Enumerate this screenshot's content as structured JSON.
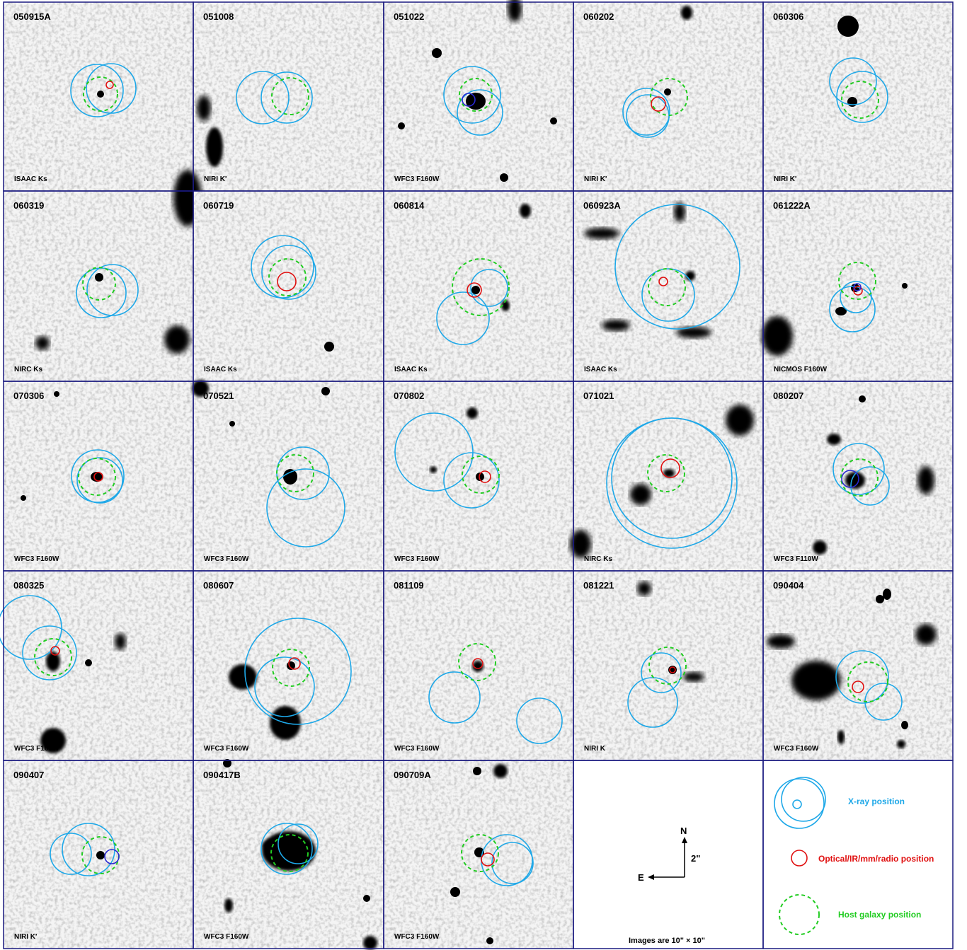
{
  "figure": {
    "rows": 5,
    "cols": 5,
    "border_color": "#1a1a80",
    "colors": {
      "xray": "#1ea8e8",
      "optical": "#e01010",
      "host": "#22cc22",
      "blue_marker": "#2828d0"
    }
  },
  "panels": [
    {
      "id": "050915A",
      "instrument": "ISAAC Ks"
    },
    {
      "id": "051008",
      "instrument": "NIRI K'"
    },
    {
      "id": "051022",
      "instrument": "WFC3 F160W"
    },
    {
      "id": "060202",
      "instrument": "NIRI K'"
    },
    {
      "id": "060306",
      "instrument": "NIRI K'"
    },
    {
      "id": "060319",
      "instrument": "NIRC Ks"
    },
    {
      "id": "060719",
      "instrument": "ISAAC Ks"
    },
    {
      "id": "060814",
      "instrument": "ISAAC Ks"
    },
    {
      "id": "060923A",
      "instrument": "ISAAC Ks"
    },
    {
      "id": "061222A",
      "instrument": "NICMOS F160W"
    },
    {
      "id": "070306",
      "instrument": "WFC3 F160W"
    },
    {
      "id": "070521",
      "instrument": "WFC3 F160W"
    },
    {
      "id": "070802",
      "instrument": "WFC3 F160W"
    },
    {
      "id": "071021",
      "instrument": "NIRC Ks"
    },
    {
      "id": "080207",
      "instrument": "WFC3 F110W"
    },
    {
      "id": "080325",
      "instrument": "WFC3 F160W"
    },
    {
      "id": "080607",
      "instrument": "WFC3 F160W"
    },
    {
      "id": "081109",
      "instrument": "WFC3 F160W"
    },
    {
      "id": "081221",
      "instrument": "NIRI K"
    },
    {
      "id": "090404",
      "instrument": "WFC3 F160W"
    },
    {
      "id": "090407",
      "instrument": "NIRI K'"
    },
    {
      "id": "090417B",
      "instrument": "WFC3 F160W"
    },
    {
      "id": "090709A",
      "instrument": "WFC3 F160W"
    }
  ],
  "compass": {
    "north": "N",
    "east": "E",
    "scale": "2\"",
    "note": "Images are 10\" × 10\""
  },
  "legend": {
    "xray": "X-ray position",
    "optical": "Optical/IR/mm/radio position",
    "host": "Host galaxy position"
  }
}
